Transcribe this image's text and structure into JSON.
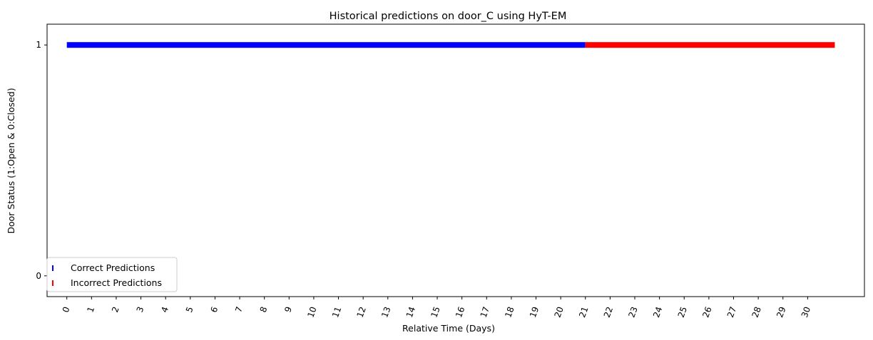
{
  "chart_data": {
    "type": "scatter",
    "title": "Historical predictions on door_C using HyT-EM",
    "xlabel": "Relative Time (Days)",
    "ylabel": "Door Status (1:Open & 0:Closed)",
    "x_ticks": [
      "0",
      "1",
      "2",
      "3",
      "4",
      "5",
      "6",
      "7",
      "8",
      "9",
      "10",
      "11",
      "12",
      "13",
      "14",
      "15",
      "16",
      "17",
      "18",
      "19",
      "20",
      "21",
      "22",
      "23",
      "24",
      "25",
      "26",
      "27",
      "28",
      "29",
      "30"
    ],
    "y_ticks": [
      "0",
      "1"
    ],
    "xlim": [
      -0.8,
      32.3
    ],
    "ylim": [
      -0.09,
      1.09
    ],
    "grid": false,
    "legend_position": "lower-left",
    "series": [
      {
        "name": "Correct Predictions",
        "color": "#0000ff",
        "marker": "|",
        "x_start": 0,
        "x_end": 21,
        "y": 1
      },
      {
        "name": "Incorrect Predictions",
        "color": "#ff0000",
        "marker": "|",
        "x_start": 21,
        "x_end": 31.1,
        "y": 1
      }
    ]
  }
}
